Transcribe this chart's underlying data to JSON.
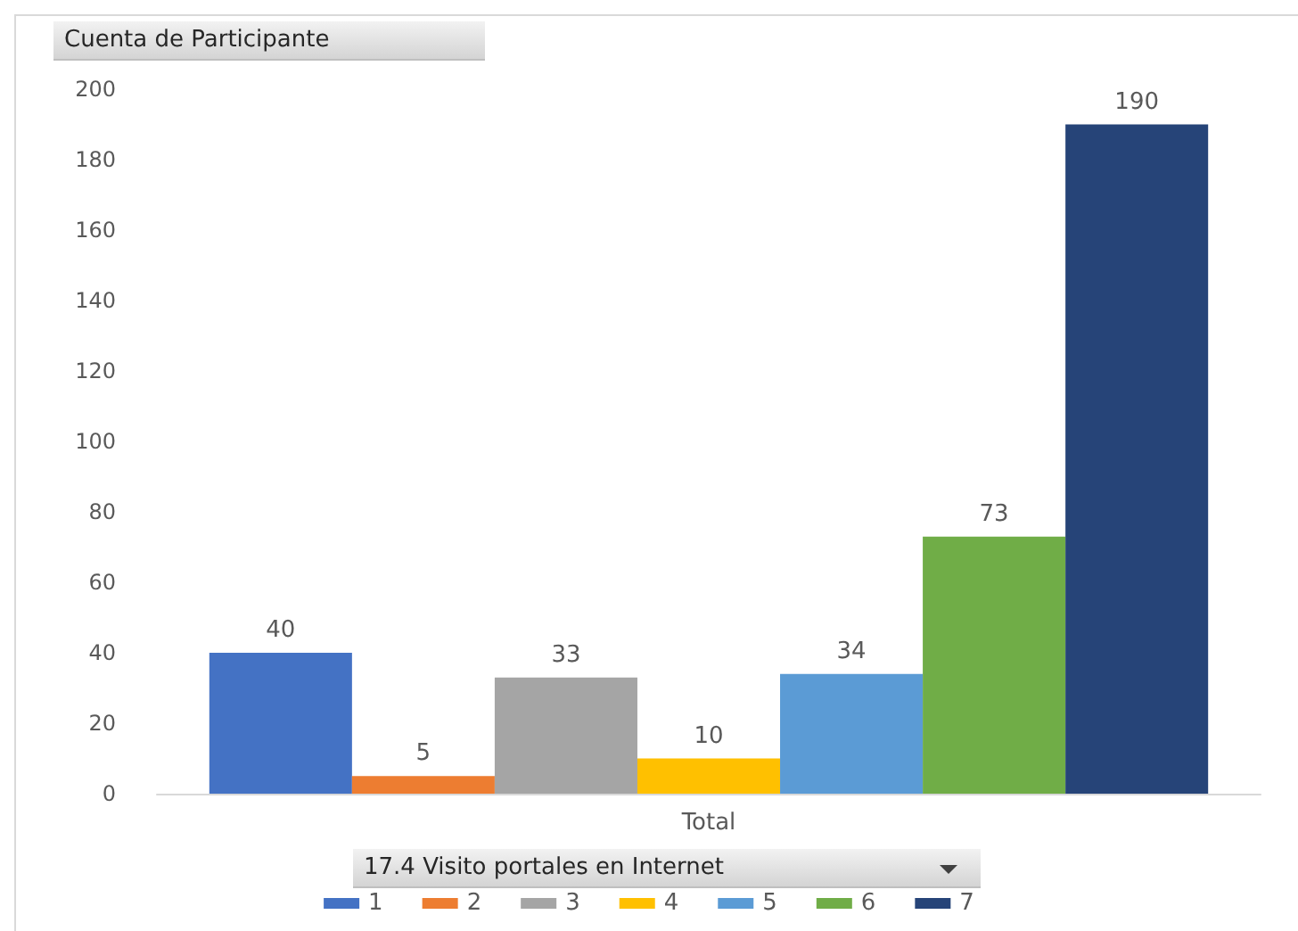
{
  "chart_data": {
    "type": "bar",
    "ylabel": "Cuenta de Participante",
    "legend_title": "17.4 Visito portales en Internet",
    "categories": [
      "Total"
    ],
    "series": [
      {
        "name": "1",
        "color": "#4472c4",
        "values": [
          40
        ]
      },
      {
        "name": "2",
        "color": "#ed7d31",
        "values": [
          5
        ]
      },
      {
        "name": "3",
        "color": "#a5a5a5",
        "values": [
          33
        ]
      },
      {
        "name": "4",
        "color": "#ffc000",
        "values": [
          10
        ]
      },
      {
        "name": "5",
        "color": "#5b9bd5",
        "values": [
          34
        ]
      },
      {
        "name": "6",
        "color": "#70ad47",
        "values": [
          73
        ]
      },
      {
        "name": "7",
        "color": "#264478",
        "values": [
          190
        ]
      }
    ],
    "ylim": [
      0,
      200
    ],
    "yticks": [
      0,
      20,
      40,
      60,
      80,
      100,
      120,
      140,
      160,
      180,
      200
    ],
    "legend": "bottom",
    "data_labels": true
  }
}
